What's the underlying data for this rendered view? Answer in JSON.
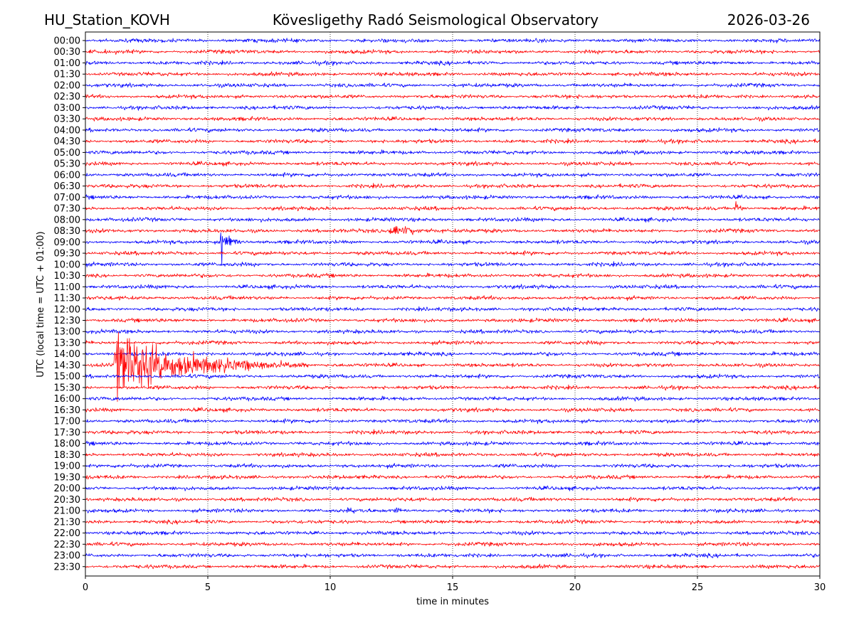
{
  "header": {
    "station": "HU_Station_KOVH",
    "title": "Kövesligethy Radó Seismological Observatory",
    "date": "2026-03-26"
  },
  "chart_data": {
    "type": "line",
    "subtype": "helicorder",
    "xlabel": "time in minutes",
    "ylabel": "UTC (local time = UTC + 01:00)",
    "xlim": [
      0,
      30
    ],
    "xticks": [
      "0",
      "5",
      "10",
      "15",
      "20",
      "25",
      "30"
    ],
    "grid": "vertical dotted at 5-minute intervals",
    "row_labels": [
      "00:00",
      "00:30",
      "01:00",
      "01:30",
      "02:00",
      "02:30",
      "03:00",
      "03:30",
      "04:00",
      "04:30",
      "05:00",
      "05:30",
      "06:00",
      "06:30",
      "07:00",
      "07:30",
      "08:00",
      "08:30",
      "09:00",
      "09:30",
      "10:00",
      "10:30",
      "11:00",
      "11:30",
      "12:00",
      "12:30",
      "13:00",
      "13:30",
      "14:00",
      "14:30",
      "15:00",
      "15:30",
      "16:00",
      "16:30",
      "17:00",
      "17:30",
      "18:00",
      "18:30",
      "19:00",
      "19:30",
      "20:00",
      "20:30",
      "21:00",
      "21:30",
      "22:00",
      "22:30",
      "23:00",
      "23:30"
    ],
    "row_colors": [
      "#0000ff",
      "#ff0000"
    ],
    "noise_amplitude_rows": 0.18,
    "events": [
      {
        "row": "14:30",
        "start_min": 1.15,
        "duration_min": 8.0,
        "peak_amplitude_rows": 4.2,
        "decay": 0.35
      },
      {
        "row": "09:00",
        "start_min": 5.5,
        "duration_min": 1.2,
        "peak_amplitude_rows": 1.4,
        "spike_rows": 4.2,
        "decay": 0.4
      },
      {
        "row": "08:30",
        "start_min": 12.4,
        "duration_min": 2.2,
        "peak_amplitude_rows": 0.75,
        "decay": 0.6
      },
      {
        "row": "07:30",
        "start_min": 26.5,
        "duration_min": 0.8,
        "peak_amplitude_rows": 1.0,
        "spike_rows": 3.5,
        "decay": 0.4
      },
      {
        "row": "21:00",
        "start_min": 10.7,
        "duration_min": 0.8,
        "peak_amplitude_rows": 0.4,
        "decay": 0.6
      },
      {
        "row": "21:00",
        "start_min": 12.6,
        "duration_min": 0.6,
        "peak_amplitude_rows": 0.5,
        "decay": 0.6
      }
    ]
  }
}
